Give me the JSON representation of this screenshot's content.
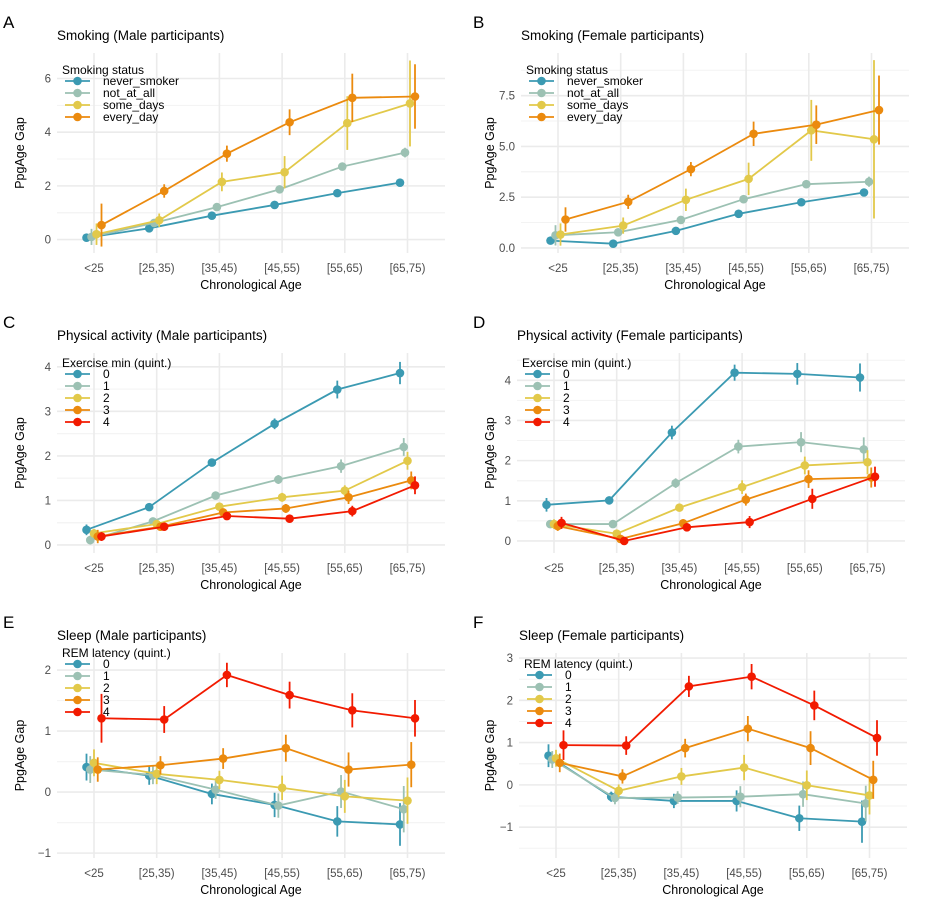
{
  "chart_data": [
    {
      "panel_label": "A",
      "type": "line",
      "title": "Smoking (Male participants)",
      "xlabel": "Chronological Age",
      "ylabel": "PpgAge Gap",
      "categories": [
        "<25",
        "[25,35)",
        "[35,45)",
        "[45,55)",
        "[55,65)",
        "[65,75)"
      ],
      "ylim": [
        -0.5,
        6.95
      ],
      "yticks": [
        0,
        2,
        4,
        6
      ],
      "ytick_labels": [
        "0",
        "2",
        "4",
        "6"
      ],
      "grid": true,
      "legend_title": "Smoking status",
      "legend_position": "top-left",
      "series": [
        {
          "name": "never_smoker",
          "color": "#3B9AB2",
          "values": [
            0.07,
            0.42,
            0.89,
            1.29,
            1.73,
            2.12
          ],
          "ci_halfwidth": [
            0.1,
            0.08,
            0.08,
            0.08,
            0.1,
            0.1
          ]
        },
        {
          "name": "not_at_all",
          "color": "#9CC1B3",
          "values": [
            0.1,
            0.62,
            1.21,
            1.87,
            2.72,
            3.24
          ],
          "ci_halfwidth": [
            0.3,
            0.1,
            0.1,
            0.1,
            0.12,
            0.18
          ]
        },
        {
          "name": "some_days",
          "color": "#E2C94A",
          "values": [
            0.2,
            0.72,
            2.15,
            2.51,
            4.34,
            5.07
          ],
          "ci_halfwidth": [
            0.4,
            0.25,
            0.35,
            0.6,
            1.0,
            1.6
          ]
        },
        {
          "name": "every_day",
          "color": "#EB8A0E",
          "values": [
            0.54,
            1.81,
            3.2,
            4.37,
            5.28,
            5.33
          ],
          "ci_halfwidth": [
            0.8,
            0.25,
            0.3,
            0.48,
            0.9,
            1.2
          ]
        }
      ]
    },
    {
      "panel_label": "B",
      "type": "line",
      "title": "Smoking (Female participants)",
      "xlabel": "Chronological Age",
      "ylabel": "PpgAge Gap",
      "categories": [
        "<25",
        "[25,35)",
        "[35,45)",
        "[45,55)",
        "[55,65)",
        "[65,75)"
      ],
      "ylim": [
        -0.25,
        9.6
      ],
      "yticks": [
        0,
        2.5,
        5,
        7.5
      ],
      "ytick_labels": [
        "0.0",
        "2.5",
        "5.0",
        "7.5"
      ],
      "grid": true,
      "legend_title": "Smoking status",
      "legend_position": "top-left",
      "series": [
        {
          "name": "never_smoker",
          "color": "#3B9AB2",
          "values": [
            0.36,
            0.21,
            0.84,
            1.68,
            2.25,
            2.73
          ],
          "ci_halfwidth": [
            0.1,
            0.1,
            0.1,
            0.1,
            0.1,
            0.15
          ]
        },
        {
          "name": "not_at_all",
          "color": "#9CC1B3",
          "values": [
            0.62,
            0.77,
            1.38,
            2.4,
            3.14,
            3.26
          ],
          "ci_halfwidth": [
            0.5,
            0.1,
            0.12,
            0.15,
            0.15,
            0.25
          ]
        },
        {
          "name": "some_days",
          "color": "#E2C94A",
          "values": [
            0.66,
            1.1,
            2.37,
            3.4,
            5.79,
            5.35
          ],
          "ci_halfwidth": [
            0.55,
            0.4,
            0.55,
            0.8,
            1.5,
            3.9
          ]
        },
        {
          "name": "every_day",
          "color": "#EB8A0E",
          "values": [
            1.4,
            2.27,
            3.88,
            5.62,
            6.07,
            6.79
          ],
          "ci_halfwidth": [
            0.6,
            0.35,
            0.35,
            0.6,
            0.95,
            1.7
          ]
        }
      ]
    },
    {
      "panel_label": "C",
      "type": "line",
      "title": "Physical activity (Male participants)",
      "xlabel": "Chronological Age",
      "ylabel": "PpgAge Gap",
      "categories": [
        "<25",
        "[25,35)",
        "[35,45)",
        "[45,55)",
        "[55,65)",
        "[65,75)"
      ],
      "ylim": [
        -0.18,
        4.31
      ],
      "yticks": [
        0,
        1,
        2,
        3,
        4
      ],
      "ytick_labels": [
        "0",
        "1",
        "2",
        "3",
        "4"
      ],
      "grid": true,
      "legend_title": "Exercise min (quint.)",
      "legend_position": "top-left",
      "series": [
        {
          "name": "0",
          "color": "#3B9AB2",
          "values": [
            0.34,
            0.85,
            1.85,
            2.72,
            3.49,
            3.86
          ],
          "ci_halfwidth": [
            0.12,
            0.07,
            0.07,
            0.12,
            0.2,
            0.25
          ]
        },
        {
          "name": "1",
          "color": "#9CC1B3",
          "values": [
            0.11,
            0.53,
            1.11,
            1.47,
            1.77,
            2.2
          ],
          "ci_halfwidth": [
            0.1,
            0.07,
            0.07,
            0.1,
            0.15,
            0.2
          ]
        },
        {
          "name": "2",
          "color": "#E2C94A",
          "values": [
            0.26,
            0.47,
            0.86,
            1.07,
            1.22,
            1.89
          ],
          "ci_halfwidth": [
            0.1,
            0.07,
            0.07,
            0.1,
            0.12,
            0.2
          ]
        },
        {
          "name": "3",
          "color": "#EB8A0E",
          "values": [
            0.19,
            0.41,
            0.73,
            0.82,
            1.07,
            1.45
          ],
          "ci_halfwidth": [
            0.15,
            0.07,
            0.07,
            0.1,
            0.15,
            0.2
          ]
        },
        {
          "name": "4",
          "color": "#F21A00",
          "values": [
            0.19,
            0.41,
            0.65,
            0.59,
            0.76,
            1.34
          ],
          "ci_halfwidth": [
            0.1,
            0.07,
            0.07,
            0.07,
            0.12,
            0.2
          ]
        }
      ]
    },
    {
      "panel_label": "D",
      "type": "line",
      "title": "Physical activity (Female participants)",
      "xlabel": "Chronological Age",
      "ylabel": "PpgAge Gap",
      "categories": [
        "<25",
        "[25,35)",
        "[35,45)",
        "[45,55)",
        "[55,65)",
        "[65,75)"
      ],
      "ylim": [
        -0.3,
        4.68
      ],
      "yticks": [
        0,
        1,
        2,
        3,
        4
      ],
      "ytick_labels": [
        "0",
        "1",
        "2",
        "3",
        "4"
      ],
      "grid": true,
      "legend_title": "Exercise min (quint.)",
      "legend_position": "top-left",
      "series": [
        {
          "name": "0",
          "color": "#3B9AB2",
          "values": [
            0.9,
            1.01,
            2.7,
            4.19,
            4.16,
            4.07
          ],
          "ci_halfwidth": [
            0.17,
            0.1,
            0.17,
            0.2,
            0.27,
            0.35
          ]
        },
        {
          "name": "1",
          "color": "#9CC1B3",
          "values": [
            0.42,
            0.42,
            1.44,
            2.35,
            2.46,
            2.28
          ],
          "ci_halfwidth": [
            0.1,
            0.05,
            0.12,
            0.17,
            0.25,
            0.3
          ]
        },
        {
          "name": "2",
          "color": "#E2C94A",
          "values": [
            0.42,
            0.18,
            0.83,
            1.34,
            1.88,
            1.96
          ],
          "ci_halfwidth": [
            0.12,
            0.05,
            0.1,
            0.17,
            0.22,
            0.3
          ]
        },
        {
          "name": "3",
          "color": "#EB8A0E",
          "values": [
            0.37,
            0.05,
            0.44,
            1.03,
            1.54,
            1.58
          ],
          "ci_halfwidth": [
            0.12,
            0.05,
            0.1,
            0.15,
            0.22,
            0.25
          ]
        },
        {
          "name": "4",
          "color": "#F21A00",
          "values": [
            0.45,
            0.0,
            0.34,
            0.47,
            1.05,
            1.6
          ],
          "ci_halfwidth": [
            0.15,
            0.05,
            0.1,
            0.15,
            0.25,
            0.25
          ]
        }
      ]
    },
    {
      "panel_label": "E",
      "type": "line",
      "title": "Sleep (Male participants)",
      "xlabel": "Chronological Age",
      "ylabel": "PpgAge Gap",
      "categories": [
        "<25",
        "[25,35)",
        "[35,45)",
        "[45,55)",
        "[55,65)",
        "[65,75)"
      ],
      "ylim": [
        -1.08,
        2.28
      ],
      "yticks": [
        -1,
        0,
        1,
        2
      ],
      "ytick_labels": [
        "−1",
        "0",
        "1",
        "2"
      ],
      "grid": true,
      "legend_title": "REM latency (quint.)",
      "legend_position": "top-left",
      "series": [
        {
          "name": "0",
          "color": "#3B9AB2",
          "values": [
            0.41,
            0.27,
            -0.03,
            -0.21,
            -0.48,
            -0.53
          ],
          "ci_halfwidth": [
            0.22,
            0.15,
            0.17,
            0.2,
            0.25,
            0.35
          ]
        },
        {
          "name": "1",
          "color": "#9CC1B3",
          "values": [
            0.37,
            0.28,
            0.04,
            -0.22,
            0.01,
            -0.28
          ],
          "ci_halfwidth": [
            0.22,
            0.15,
            0.15,
            0.2,
            0.27,
            0.38
          ]
        },
        {
          "name": "2",
          "color": "#E2C94A",
          "values": [
            0.48,
            0.3,
            0.2,
            0.07,
            -0.07,
            -0.14
          ],
          "ci_halfwidth": [
            0.22,
            0.17,
            0.15,
            0.2,
            0.27,
            0.38
          ]
        },
        {
          "name": "3",
          "color": "#EB8A0E",
          "values": [
            0.37,
            0.44,
            0.55,
            0.72,
            0.37,
            0.45
          ],
          "ci_halfwidth": [
            0.2,
            0.15,
            0.17,
            0.22,
            0.28,
            0.37
          ]
        },
        {
          "name": "4",
          "color": "#F21A00",
          "values": [
            1.21,
            1.19,
            1.92,
            1.59,
            1.34,
            1.21
          ],
          "ci_halfwidth": [
            0.4,
            0.22,
            0.2,
            0.22,
            0.28,
            0.3
          ]
        }
      ]
    },
    {
      "panel_label": "F",
      "type": "line",
      "title": "Sleep (Female participants)",
      "xlabel": "Chronological Age",
      "ylabel": "PpgAge Gap",
      "categories": [
        "<25",
        "[25,35)",
        "[35,45)",
        "[45,55)",
        "[55,65)",
        "[65,75)"
      ],
      "ylim": [
        -1.73,
        3.12
      ],
      "yticks": [
        -1,
        0,
        1,
        2,
        3
      ],
      "ytick_labels": [
        "−1",
        "0",
        "1",
        "2",
        "3"
      ],
      "grid": true,
      "legend_title": "REM latency (quint.)",
      "legend_position": "top-left",
      "series": [
        {
          "name": "0",
          "color": "#3B9AB2",
          "values": [
            0.69,
            -0.28,
            -0.38,
            -0.38,
            -0.79,
            -0.87
          ],
          "ci_halfwidth": [
            0.27,
            0.12,
            0.17,
            0.25,
            0.3,
            0.5
          ]
        },
        {
          "name": "1",
          "color": "#9CC1B3",
          "values": [
            0.6,
            -0.31,
            -0.3,
            -0.28,
            -0.22,
            -0.44
          ],
          "ci_halfwidth": [
            0.2,
            0.15,
            0.15,
            0.25,
            0.3,
            0.42
          ]
        },
        {
          "name": "2",
          "color": "#E2C94A",
          "values": [
            0.63,
            -0.14,
            0.2,
            0.41,
            -0.01,
            -0.25
          ],
          "ci_halfwidth": [
            0.2,
            0.15,
            0.2,
            0.3,
            0.35,
            0.45
          ]
        },
        {
          "name": "3",
          "color": "#EB8A0E",
          "values": [
            0.52,
            0.2,
            0.87,
            1.33,
            0.87,
            0.12
          ],
          "ci_halfwidth": [
            0.22,
            0.17,
            0.22,
            0.3,
            0.4,
            0.45
          ]
        },
        {
          "name": "4",
          "color": "#F21A00",
          "values": [
            0.94,
            0.93,
            2.33,
            2.56,
            1.88,
            1.11
          ],
          "ci_halfwidth": [
            0.35,
            0.22,
            0.25,
            0.3,
            0.35,
            0.42
          ]
        }
      ]
    }
  ]
}
